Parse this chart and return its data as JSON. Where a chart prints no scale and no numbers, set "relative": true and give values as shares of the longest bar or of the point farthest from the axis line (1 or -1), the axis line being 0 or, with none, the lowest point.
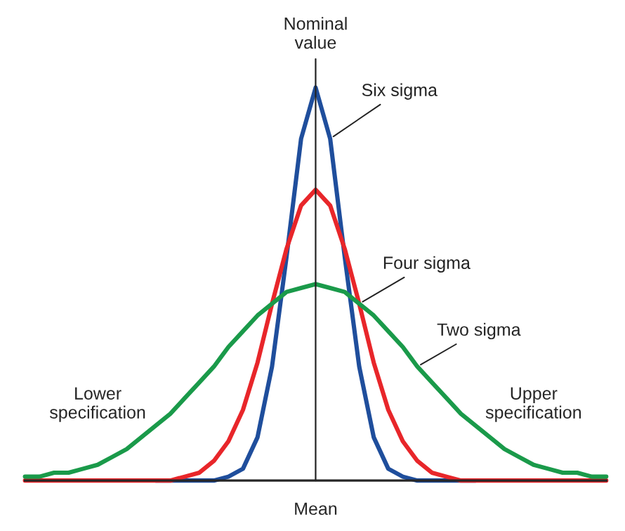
{
  "chart_data": {
    "type": "line",
    "relative": true,
    "categories": [
      null,
      null,
      null,
      null,
      null,
      "Lower\nspecification",
      null,
      null,
      null,
      null,
      null,
      null,
      null,
      null,
      null,
      null,
      null,
      null,
      null,
      null,
      "Mean",
      null,
      null,
      null,
      null,
      null,
      null,
      null,
      null,
      null,
      null,
      null,
      null,
      null,
      null,
      "Upper\nspecification",
      null,
      null,
      null,
      null,
      null
    ],
    "series": [
      {
        "name": "Six sigma",
        "color": "#1f4e9c",
        "values": [
          null,
          null,
          null,
          null,
          null,
          null,
          null,
          null,
          null,
          0,
          0,
          0,
          0,
          0,
          0.01,
          0.03,
          0.11,
          0.29,
          0.57,
          0.87,
          1,
          0.87,
          0.57,
          0.29,
          0.11,
          0.03,
          0.01,
          0,
          0,
          0,
          0,
          0,
          null,
          null,
          null,
          null,
          null,
          null,
          null,
          null,
          null
        ]
      },
      {
        "name": "Four sigma",
        "color": "#e8262a",
        "values": [
          0,
          0,
          0,
          0,
          0,
          0,
          0,
          0,
          0,
          0,
          0,
          0.01,
          0.02,
          0.05,
          0.1,
          0.18,
          0.3,
          0.45,
          0.59,
          0.7,
          0.74,
          0.7,
          0.59,
          0.45,
          0.3,
          0.18,
          0.1,
          0.05,
          0.02,
          0.01,
          0,
          0,
          0,
          0,
          0,
          0,
          0,
          0,
          0,
          0,
          0
        ]
      },
      {
        "name": "Two sigma",
        "color": "#1a9a4a",
        "values": [
          0.01,
          0.01,
          0.02,
          0.02,
          0.03,
          0.04,
          0.06,
          0.08,
          0.11,
          0.14,
          0.17,
          0.21,
          0.25,
          0.29,
          0.34,
          0.38,
          0.42,
          0.45,
          0.48,
          0.49,
          0.5,
          0.49,
          0.48,
          0.45,
          0.42,
          0.38,
          0.34,
          0.29,
          0.25,
          0.21,
          0.17,
          0.14,
          0.11,
          0.08,
          0.06,
          0.04,
          0.03,
          0.02,
          0.02,
          0.01,
          0.01
        ]
      }
    ],
    "annotations": [
      "Nominal\nvalue"
    ],
    "grid": false,
    "legend": false
  }
}
